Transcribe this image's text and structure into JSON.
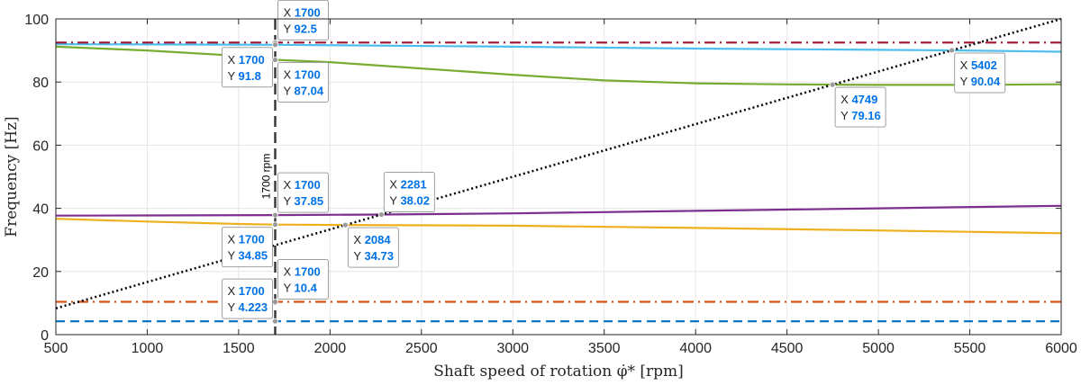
{
  "chart_data": {
    "type": "line",
    "title": "",
    "xlabel": "Shaft speed of rotation φ̇* [rpm]",
    "ylabel": "Frequency [Hz]",
    "xlim": [
      500,
      6000
    ],
    "ylim": [
      0,
      100
    ],
    "xticks": [
      500,
      1000,
      1500,
      2000,
      2500,
      3000,
      3500,
      4000,
      4500,
      5000,
      5500,
      6000
    ],
    "yticks": [
      0,
      20,
      40,
      60,
      80,
      100
    ],
    "grid": true,
    "legend": "none",
    "series": [
      {
        "color": "#7e2f8e",
        "style": "solid",
        "x": [
          500,
          1000,
          1700,
          2281,
          3000,
          4000,
          5000,
          6000
        ],
        "y": [
          37.7,
          37.75,
          37.85,
          38.02,
          38.4,
          39.2,
          40.0,
          40.8
        ]
      },
      {
        "color": "#edb120",
        "style": "solid",
        "x": [
          500,
          1000,
          1500,
          1700,
          2084,
          3000,
          4000,
          5000,
          6000
        ],
        "y": [
          36.7,
          35.8,
          35.05,
          34.85,
          34.73,
          34.5,
          33.8,
          33.0,
          32.1
        ]
      },
      {
        "color": "#77ac30",
        "style": "solid",
        "x": [
          500,
          1000,
          1500,
          1700,
          2000,
          2500,
          3000,
          3500,
          4000,
          4500,
          4749,
          5000,
          5500,
          6000
        ],
        "y": [
          91.2,
          90.0,
          88.3,
          87.04,
          86.3,
          84.3,
          82.3,
          80.5,
          79.6,
          79.25,
          79.16,
          79.1,
          79.1,
          79.3
        ]
      },
      {
        "color": "#4dbeee",
        "style": "solid",
        "x": [
          500,
          1700,
          3000,
          4000,
          5000,
          5402,
          6000
        ],
        "y": [
          92.0,
          91.8,
          91.2,
          90.6,
          90.2,
          90.04,
          89.6
        ]
      },
      {
        "color": "#a2142f",
        "style": "dashdot",
        "x": [
          500,
          6000
        ],
        "y": [
          92.5,
          92.5
        ]
      },
      {
        "color": "#d95319",
        "style": "dashdot",
        "x": [
          500,
          6000
        ],
        "y": [
          10.4,
          10.4
        ]
      },
      {
        "color": "#0072bd",
        "style": "dashed",
        "x": [
          500,
          6000
        ],
        "y": [
          4.223,
          4.223
        ]
      },
      {
        "color": "#000000",
        "style": "dotted",
        "x": [
          500,
          6000
        ],
        "y": [
          8.33,
          100
        ]
      }
    ],
    "vline": {
      "x": 1700,
      "label": "1700 rpm",
      "color": "#333333",
      "style": "dashed"
    },
    "annotations": [
      {
        "x": 1700,
        "y": 92.5,
        "xv": "1700",
        "yv": "92.5",
        "pos": "above-right"
      },
      {
        "x": 1700,
        "y": 91.8,
        "xv": "1700",
        "yv": "91.8",
        "pos": "below-left"
      },
      {
        "x": 1700,
        "y": 87.04,
        "xv": "1700",
        "yv": "87.04",
        "pos": "below-right"
      },
      {
        "x": 1700,
        "y": 37.85,
        "xv": "1700",
        "yv": "37.85",
        "pos": "above-right"
      },
      {
        "x": 1700,
        "y": 34.85,
        "xv": "1700",
        "yv": "34.85",
        "pos": "below-left"
      },
      {
        "x": 1700,
        "y": 10.4,
        "xv": "1700",
        "yv": "10.4",
        "pos": "above-right"
      },
      {
        "x": 1700,
        "y": 4.223,
        "xv": "1700",
        "yv": "4.223",
        "pos": "above-left"
      },
      {
        "x": 2281,
        "y": 38.02,
        "xv": "2281",
        "yv": "38.02",
        "pos": "above-right"
      },
      {
        "x": 2084,
        "y": 34.73,
        "xv": "2084",
        "yv": "34.73",
        "pos": "below-right"
      },
      {
        "x": 4749,
        "y": 79.16,
        "xv": "4749",
        "yv": "79.16",
        "pos": "below-right"
      },
      {
        "x": 5402,
        "y": 90.04,
        "xv": "5402",
        "yv": "90.04",
        "pos": "below-right"
      }
    ],
    "datatip_keys": {
      "x": "X",
      "y": "Y"
    }
  }
}
